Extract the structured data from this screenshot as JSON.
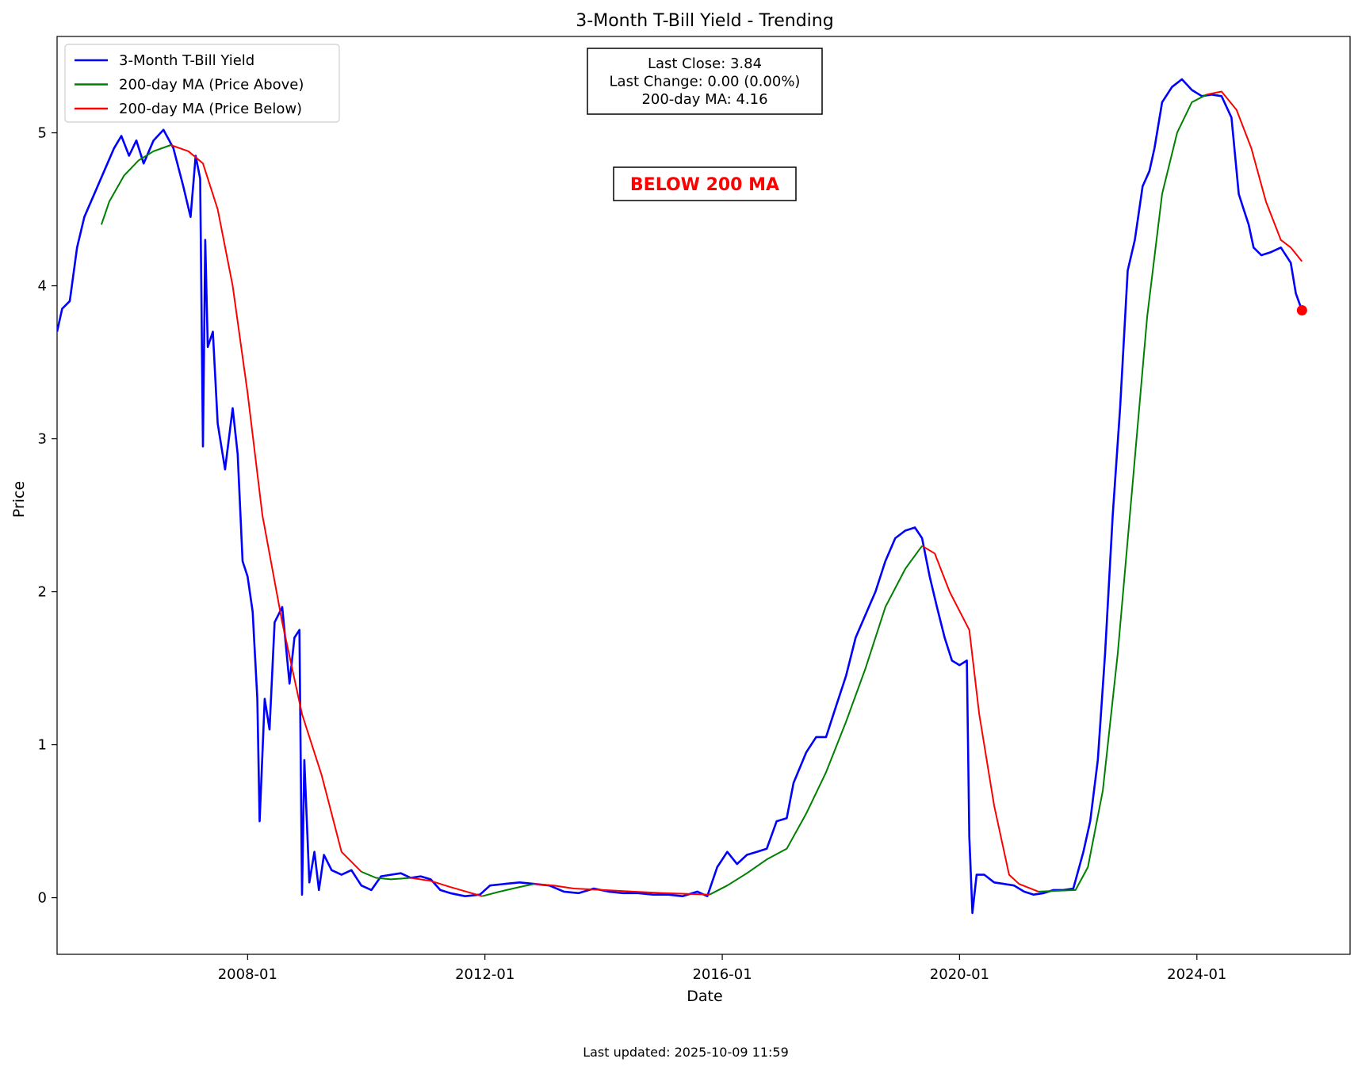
{
  "footer": {
    "updated": "Last updated: 2025-10-09 11:59"
  },
  "colors": {
    "price": "#0000ff",
    "ma_above": "#008000",
    "ma_below": "#ff0000",
    "status": "#ff0000",
    "axis": "#000000"
  },
  "chart_data": {
    "type": "line",
    "title": "3-Month T-Bill Yield - Trending",
    "xlabel": "Date",
    "ylabel": "Price",
    "xlim": [
      "2004-10-15",
      "2026-08-01"
    ],
    "ylim": [
      -0.37,
      5.63
    ],
    "x_ticks": [
      "2008-01-01",
      "2012-01-01",
      "2016-01-01",
      "2020-01-01",
      "2024-01-01"
    ],
    "x_tick_labels": [
      "2008-01",
      "2012-01",
      "2016-01",
      "2020-01",
      "2024-01"
    ],
    "y_ticks": [
      0,
      1,
      2,
      3,
      4,
      5
    ],
    "y_tick_labels": [
      "0",
      "1",
      "2",
      "3",
      "4",
      "5"
    ],
    "grid": false,
    "legend_position": "top-left",
    "info_box": {
      "lines": [
        "Last Close: 3.84",
        "Last Change: 0.00 (0.00%)",
        "200-day MA: 4.16"
      ]
    },
    "status_label": "BELOW 200 MA",
    "last_point": {
      "x": "2025-10-09",
      "y": 3.84
    },
    "series": [
      {
        "name": "3-Month T-Bill Yield",
        "color": "#0000ff",
        "points": [
          [
            "2004-10-15",
            3.7
          ],
          [
            "2004-11-15",
            3.85
          ],
          [
            "2005-01-01",
            3.9
          ],
          [
            "2005-02-15",
            4.25
          ],
          [
            "2005-04-01",
            4.45
          ],
          [
            "2005-06-01",
            4.6
          ],
          [
            "2005-08-01",
            4.75
          ],
          [
            "2005-10-01",
            4.9
          ],
          [
            "2005-11-15",
            4.98
          ],
          [
            "2006-01-01",
            4.85
          ],
          [
            "2006-02-15",
            4.95
          ],
          [
            "2006-04-01",
            4.8
          ],
          [
            "2006-06-01",
            4.95
          ],
          [
            "2006-08-01",
            5.02
          ],
          [
            "2006-10-01",
            4.9
          ],
          [
            "2006-12-01",
            4.65
          ],
          [
            "2007-01-15",
            4.45
          ],
          [
            "2007-02-15",
            4.85
          ],
          [
            "2007-03-15",
            4.7
          ],
          [
            "2007-04-01",
            2.95
          ],
          [
            "2007-04-15",
            4.3
          ],
          [
            "2007-05-01",
            3.6
          ],
          [
            "2007-06-01",
            3.7
          ],
          [
            "2007-07-01",
            3.1
          ],
          [
            "2007-08-15",
            2.8
          ],
          [
            "2007-10-01",
            3.2
          ],
          [
            "2007-11-01",
            2.9
          ],
          [
            "2007-12-01",
            2.2
          ],
          [
            "2008-01-01",
            2.1
          ],
          [
            "2008-02-01",
            1.87
          ],
          [
            "2008-03-01",
            1.3
          ],
          [
            "2008-03-15",
            0.5
          ],
          [
            "2008-04-15",
            1.3
          ],
          [
            "2008-05-15",
            1.1
          ],
          [
            "2008-06-15",
            1.8
          ],
          [
            "2008-08-01",
            1.9
          ],
          [
            "2008-09-15",
            1.4
          ],
          [
            "2008-10-15",
            1.7
          ],
          [
            "2008-11-15",
            1.75
          ],
          [
            "2008-12-01",
            0.02
          ],
          [
            "2008-12-15",
            0.9
          ],
          [
            "2009-01-15",
            0.1
          ],
          [
            "2009-02-15",
            0.3
          ],
          [
            "2009-03-15",
            0.05
          ],
          [
            "2009-04-15",
            0.28
          ],
          [
            "2009-06-01",
            0.18
          ],
          [
            "2009-08-01",
            0.15
          ],
          [
            "2009-10-01",
            0.18
          ],
          [
            "2009-12-01",
            0.08
          ],
          [
            "2010-02-01",
            0.05
          ],
          [
            "2010-04-01",
            0.14
          ],
          [
            "2010-06-01",
            0.15
          ],
          [
            "2010-08-01",
            0.16
          ],
          [
            "2010-10-01",
            0.13
          ],
          [
            "2010-12-01",
            0.14
          ],
          [
            "2011-02-01",
            0.12
          ],
          [
            "2011-04-01",
            0.05
          ],
          [
            "2011-06-01",
            0.03
          ],
          [
            "2011-09-01",
            0.01
          ],
          [
            "2011-12-01",
            0.02
          ],
          [
            "2012-02-01",
            0.08
          ],
          [
            "2012-05-01",
            0.09
          ],
          [
            "2012-08-01",
            0.1
          ],
          [
            "2012-11-01",
            0.09
          ],
          [
            "2013-02-01",
            0.08
          ],
          [
            "2013-05-01",
            0.04
          ],
          [
            "2013-08-01",
            0.03
          ],
          [
            "2013-11-01",
            0.06
          ],
          [
            "2014-02-01",
            0.04
          ],
          [
            "2014-05-01",
            0.03
          ],
          [
            "2014-08-01",
            0.03
          ],
          [
            "2014-11-01",
            0.02
          ],
          [
            "2015-02-01",
            0.02
          ],
          [
            "2015-05-01",
            0.01
          ],
          [
            "2015-08-01",
            0.04
          ],
          [
            "2015-10-01",
            0.01
          ],
          [
            "2015-12-01",
            0.2
          ],
          [
            "2016-02-01",
            0.3
          ],
          [
            "2016-04-01",
            0.22
          ],
          [
            "2016-06-01",
            0.28
          ],
          [
            "2016-08-01",
            0.3
          ],
          [
            "2016-10-01",
            0.32
          ],
          [
            "2016-12-01",
            0.5
          ],
          [
            "2017-02-01",
            0.52
          ],
          [
            "2017-03-15",
            0.75
          ],
          [
            "2017-06-01",
            0.95
          ],
          [
            "2017-08-01",
            1.05
          ],
          [
            "2017-10-01",
            1.05
          ],
          [
            "2017-12-01",
            1.25
          ],
          [
            "2018-02-01",
            1.45
          ],
          [
            "2018-04-01",
            1.7
          ],
          [
            "2018-06-01",
            1.85
          ],
          [
            "2018-08-01",
            2.0
          ],
          [
            "2018-10-01",
            2.2
          ],
          [
            "2018-12-01",
            2.35
          ],
          [
            "2019-02-01",
            2.4
          ],
          [
            "2019-04-01",
            2.42
          ],
          [
            "2019-05-15",
            2.35
          ],
          [
            "2019-07-01",
            2.1
          ],
          [
            "2019-08-15",
            1.9
          ],
          [
            "2019-10-01",
            1.7
          ],
          [
            "2019-11-15",
            1.55
          ],
          [
            "2020-01-01",
            1.52
          ],
          [
            "2020-02-15",
            1.55
          ],
          [
            "2020-03-01",
            0.4
          ],
          [
            "2020-03-20",
            -0.1
          ],
          [
            "2020-04-15",
            0.15
          ],
          [
            "2020-06-01",
            0.15
          ],
          [
            "2020-08-01",
            0.1
          ],
          [
            "2020-10-01",
            0.09
          ],
          [
            "2020-12-01",
            0.08
          ],
          [
            "2021-02-01",
            0.04
          ],
          [
            "2021-04-01",
            0.02
          ],
          [
            "2021-06-01",
            0.03
          ],
          [
            "2021-08-01",
            0.05
          ],
          [
            "2021-10-01",
            0.05
          ],
          [
            "2021-12-01",
            0.06
          ],
          [
            "2022-02-01",
            0.3
          ],
          [
            "2022-03-15",
            0.5
          ],
          [
            "2022-05-01",
            0.9
          ],
          [
            "2022-06-15",
            1.6
          ],
          [
            "2022-08-01",
            2.5
          ],
          [
            "2022-09-15",
            3.2
          ],
          [
            "2022-11-01",
            4.1
          ],
          [
            "2022-12-15",
            4.3
          ],
          [
            "2023-02-01",
            4.65
          ],
          [
            "2023-03-15",
            4.75
          ],
          [
            "2023-04-15",
            4.9
          ],
          [
            "2023-06-01",
            5.2
          ],
          [
            "2023-08-01",
            5.3
          ],
          [
            "2023-10-01",
            5.35
          ],
          [
            "2023-12-01",
            5.28
          ],
          [
            "2024-02-01",
            5.24
          ],
          [
            "2024-04-01",
            5.25
          ],
          [
            "2024-06-01",
            5.24
          ],
          [
            "2024-08-01",
            5.1
          ],
          [
            "2024-09-15",
            4.6
          ],
          [
            "2024-10-15",
            4.5
          ],
          [
            "2024-11-15",
            4.4
          ],
          [
            "2024-12-15",
            4.25
          ],
          [
            "2025-02-01",
            4.2
          ],
          [
            "2025-04-01",
            4.22
          ],
          [
            "2025-06-01",
            4.25
          ],
          [
            "2025-08-01",
            4.15
          ],
          [
            "2025-09-01",
            3.95
          ],
          [
            "2025-10-09",
            3.84
          ]
        ]
      },
      {
        "name": "200-day MA (Price Above)",
        "color": "#008000",
        "segments": [
          [
            [
              "2005-07-15",
              4.4
            ],
            [
              "2005-09-01",
              4.55
            ],
            [
              "2005-12-01",
              4.72
            ],
            [
              "2006-03-01",
              4.82
            ],
            [
              "2006-06-01",
              4.88
            ],
            [
              "2006-09-15",
              4.92
            ]
          ],
          [
            [
              "2009-12-01",
              0.17
            ],
            [
              "2010-03-01",
              0.13
            ],
            [
              "2010-06-01",
              0.12
            ],
            [
              "2010-10-01",
              0.13
            ]
          ],
          [
            [
              "2011-12-15",
              0.01
            ],
            [
              "2012-04-01",
              0.04
            ],
            [
              "2012-08-01",
              0.07
            ],
            [
              "2012-11-01",
              0.09
            ]
          ],
          [
            [
              "2015-10-15",
              0.02
            ],
            [
              "2016-02-01",
              0.08
            ],
            [
              "2016-06-01",
              0.16
            ],
            [
              "2016-10-01",
              0.25
            ],
            [
              "2017-02-01",
              0.32
            ],
            [
              "2017-06-01",
              0.55
            ],
            [
              "2017-10-01",
              0.82
            ],
            [
              "2018-02-01",
              1.15
            ],
            [
              "2018-06-01",
              1.5
            ],
            [
              "2018-10-01",
              1.9
            ],
            [
              "2019-02-01",
              2.15
            ],
            [
              "2019-05-15",
              2.3
            ]
          ],
          [
            [
              "2021-05-01",
              0.04
            ],
            [
              "2021-12-15",
              0.05
            ],
            [
              "2022-03-01",
              0.2
            ],
            [
              "2022-06-01",
              0.7
            ],
            [
              "2022-09-01",
              1.6
            ],
            [
              "2022-12-01",
              2.7
            ],
            [
              "2023-03-01",
              3.8
            ],
            [
              "2023-06-01",
              4.6
            ],
            [
              "2023-09-01",
              5.0
            ],
            [
              "2023-12-01",
              5.2
            ],
            [
              "2024-03-01",
              5.25
            ]
          ]
        ]
      },
      {
        "name": "200-day MA (Price Below)",
        "color": "#ff0000",
        "segments": [
          [
            [
              "2006-09-15",
              4.92
            ],
            [
              "2007-01-01",
              4.88
            ],
            [
              "2007-04-01",
              4.8
            ],
            [
              "2007-07-01",
              4.5
            ],
            [
              "2007-10-01",
              4.0
            ],
            [
              "2008-01-01",
              3.3
            ],
            [
              "2008-04-01",
              2.5
            ],
            [
              "2008-08-01",
              1.8
            ],
            [
              "2008-12-01",
              1.2
            ],
            [
              "2009-04-01",
              0.8
            ],
            [
              "2009-08-01",
              0.3
            ],
            [
              "2009-12-01",
              0.17
            ]
          ],
          [
            [
              "2010-10-01",
              0.13
            ],
            [
              "2011-02-01",
              0.11
            ],
            [
              "2011-06-01",
              0.07
            ],
            [
              "2011-12-15",
              0.01
            ]
          ],
          [
            [
              "2012-11-01",
              0.09
            ],
            [
              "2013-03-01",
              0.08
            ],
            [
              "2013-07-01",
              0.06
            ],
            [
              "2014-01-01",
              0.05
            ],
            [
              "2014-07-01",
              0.04
            ],
            [
              "2015-01-01",
              0.03
            ],
            [
              "2015-10-15",
              0.02
            ]
          ],
          [
            [
              "2019-05-15",
              2.3
            ],
            [
              "2019-08-01",
              2.25
            ],
            [
              "2019-11-01",
              2.0
            ],
            [
              "2020-03-01",
              1.75
            ],
            [
              "2020-05-01",
              1.2
            ],
            [
              "2020-08-01",
              0.6
            ],
            [
              "2020-11-01",
              0.15
            ],
            [
              "2021-01-01",
              0.09
            ],
            [
              "2021-05-01",
              0.04
            ]
          ],
          [
            [
              "2024-03-01",
              5.25
            ],
            [
              "2024-06-01",
              5.27
            ],
            [
              "2024-09-01",
              5.15
            ],
            [
              "2024-12-01",
              4.9
            ],
            [
              "2025-03-01",
              4.55
            ],
            [
              "2025-06-01",
              4.3
            ],
            [
              "2025-08-01",
              4.25
            ],
            [
              "2025-10-09",
              4.16
            ]
          ]
        ]
      }
    ]
  }
}
